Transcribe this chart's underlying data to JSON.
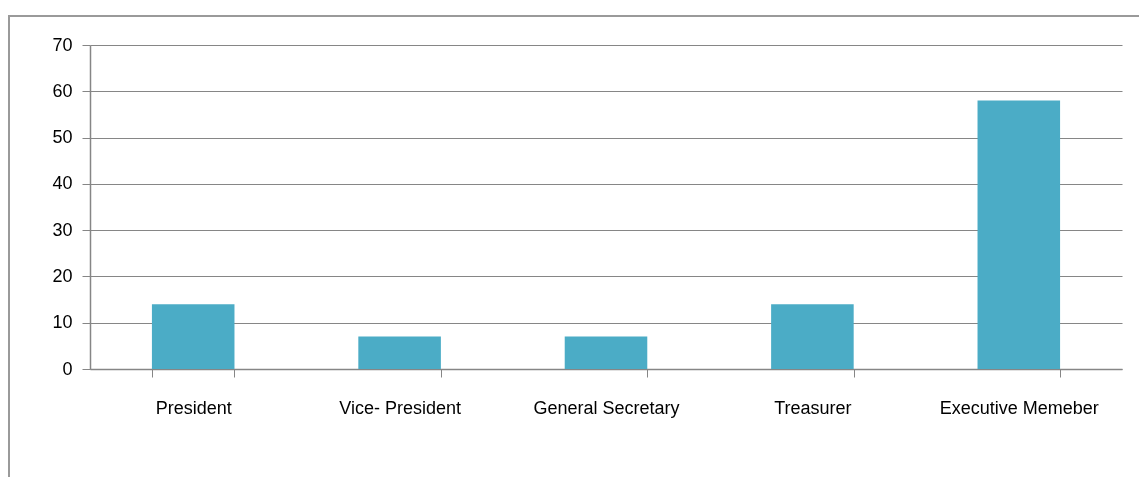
{
  "chart_data": {
    "type": "bar",
    "categories": [
      "President",
      "Vice- President",
      "General Secretary",
      "Treasurer",
      "Executive Memeber"
    ],
    "values": [
      14,
      7,
      7,
      14,
      58
    ],
    "color": "#4bacc6",
    "ylim": [
      0,
      70
    ],
    "yticks": [
      0,
      10,
      20,
      30,
      40,
      50,
      60,
      70
    ],
    "grid": "y"
  }
}
